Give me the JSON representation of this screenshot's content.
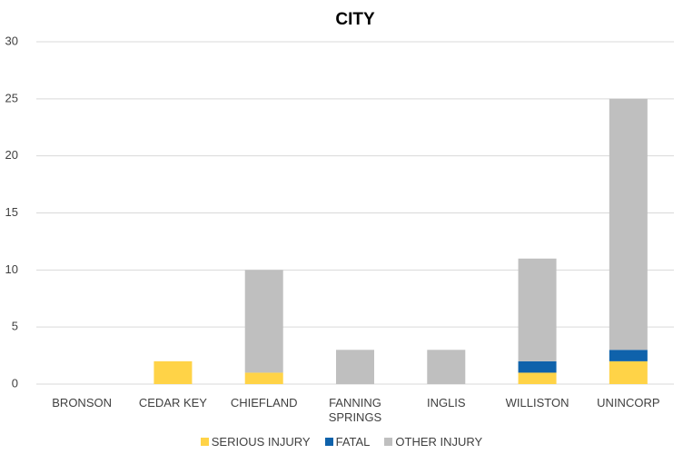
{
  "chart_data": {
    "type": "stacked_bar",
    "title": "CITY",
    "categories": [
      "BRONSON",
      "CEDAR KEY",
      "CHIEFLAND",
      "FANNING SPRINGS",
      "INGLIS",
      "WILLISTON",
      "UNINCORP"
    ],
    "series": [
      {
        "name": "SERIOUS INJURY",
        "color": "#ffd347",
        "values": [
          0,
          2,
          1,
          0,
          0,
          1,
          2
        ]
      },
      {
        "name": "FATAL",
        "color": "#0f62ab",
        "values": [
          0,
          0,
          0,
          0,
          0,
          1,
          1
        ]
      },
      {
        "name": "OTHER INJURY",
        "color": "#bfbfbf",
        "values": [
          0,
          0,
          9,
          3,
          3,
          9,
          22
        ]
      }
    ],
    "ylim": [
      0,
      30
    ],
    "yticks": [
      0,
      5,
      10,
      15,
      20,
      25,
      30
    ],
    "grid": true,
    "legend": "bottom"
  }
}
